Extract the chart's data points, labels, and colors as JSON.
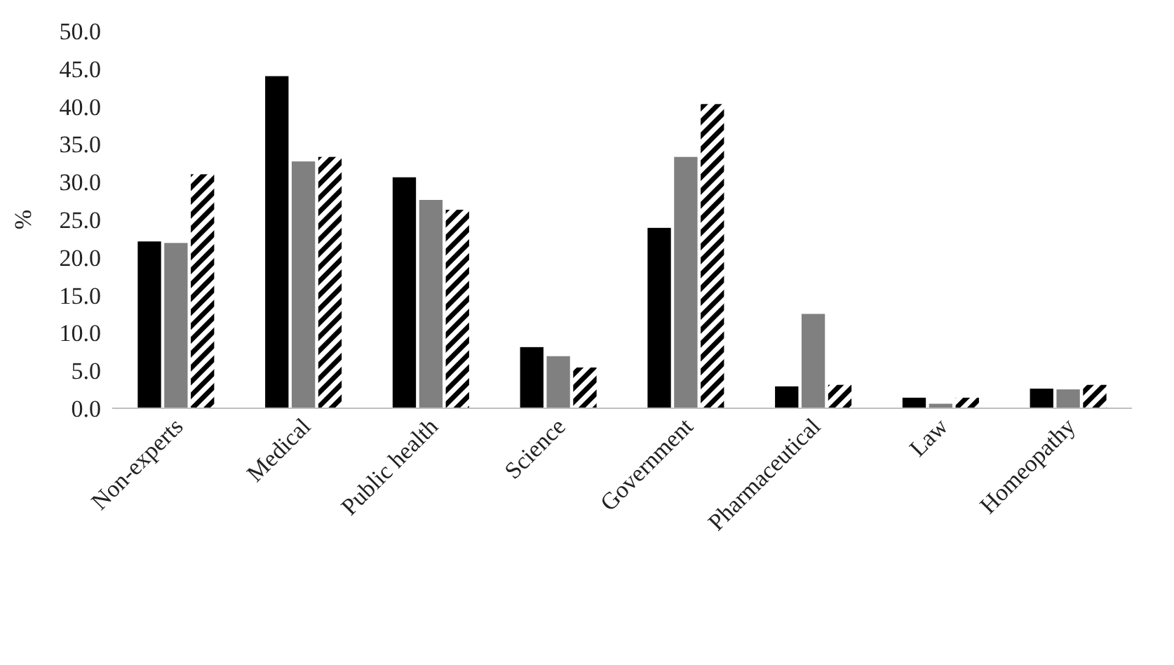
{
  "chart_data": {
    "type": "bar",
    "ylabel": "%",
    "categories": [
      "Non-experts",
      "Medical",
      "Public health",
      "Science",
      "Government",
      "Pharmaceutical",
      "Law",
      "Homeopathy"
    ],
    "series": [
      {
        "color": "#000000",
        "values": [
          22.1,
          44.0,
          30.6,
          8.1,
          23.9,
          2.9,
          1.4,
          2.6
        ]
      },
      {
        "color": "#808080",
        "values": [
          21.9,
          32.7,
          27.6,
          6.9,
          33.3,
          12.5,
          0.6,
          2.5
        ]
      },
      {
        "color": "#000000",
        "values": [
          31.0,
          33.3,
          26.3,
          5.4,
          40.3,
          3.1,
          1.4,
          3.1
        ]
      }
    ],
    "ylim": [
      0,
      50
    ],
    "yticks": [
      {
        "value": 0,
        "label": "0.0"
      },
      {
        "value": 5,
        "label": "5.0"
      },
      {
        "value": 10,
        "label": "10.0"
      },
      {
        "value": 15,
        "label": "15.0"
      },
      {
        "value": 20,
        "label": "20.0"
      },
      {
        "value": 25,
        "label": "25.0"
      },
      {
        "value": 30,
        "label": "30.0"
      },
      {
        "value": 35,
        "label": "35.0"
      },
      {
        "value": 40,
        "label": "40.0"
      },
      {
        "value": 45,
        "label": "45.0"
      },
      {
        "value": 50,
        "label": "50.0"
      }
    ],
    "grid": false
  }
}
